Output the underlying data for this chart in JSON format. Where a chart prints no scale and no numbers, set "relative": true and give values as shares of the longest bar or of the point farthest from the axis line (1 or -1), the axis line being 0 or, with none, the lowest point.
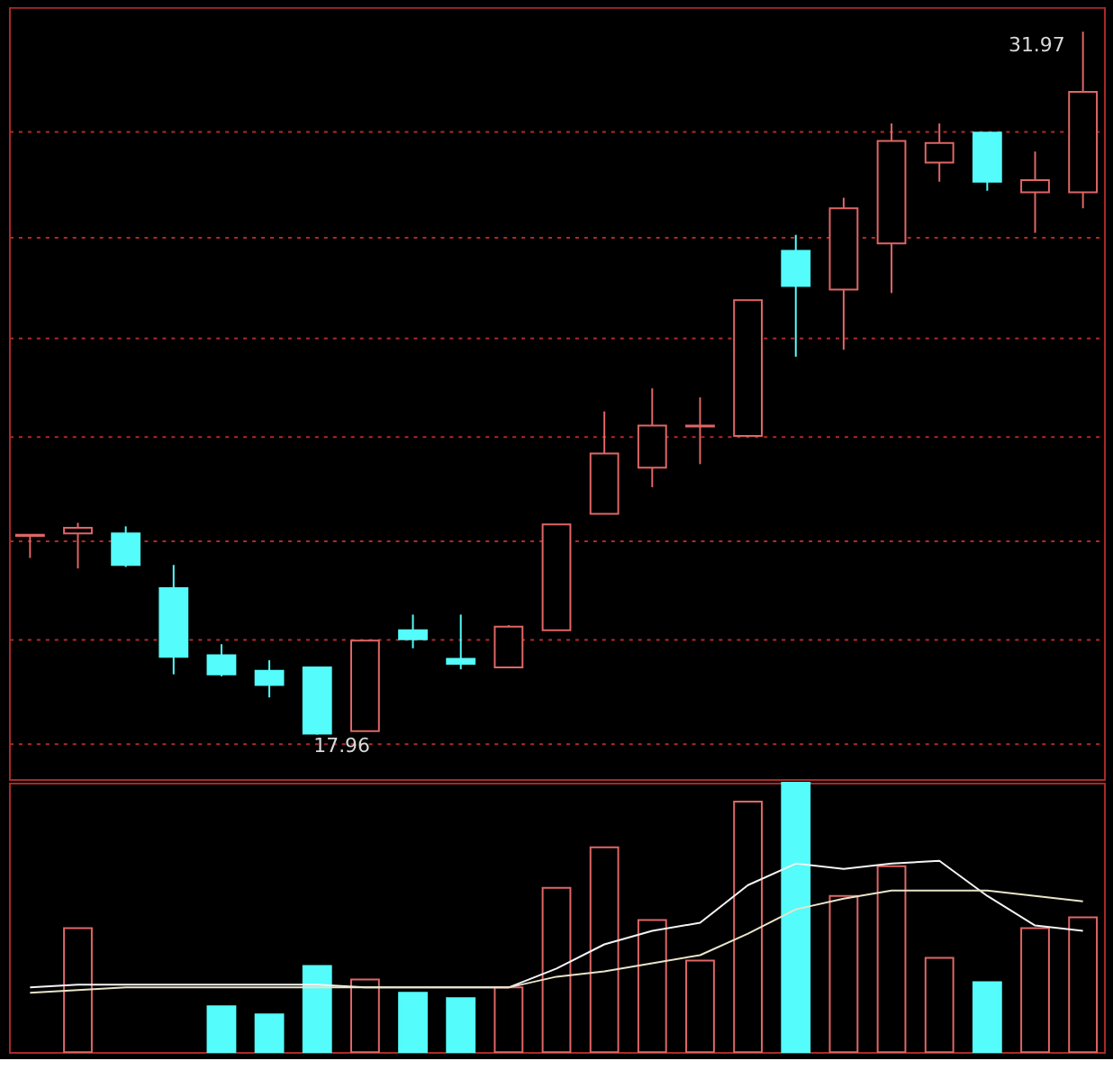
{
  "chart_data": [
    {
      "type": "candlestick",
      "categories": [
        null,
        null,
        null,
        null,
        null,
        null,
        null,
        null,
        null,
        null,
        null,
        null,
        null,
        null,
        null,
        null,
        null,
        null,
        null,
        null,
        null,
        null,
        null
      ],
      "ohlc": [
        [
          21.92,
          21.94,
          21.48,
          21.94
        ],
        [
          21.97,
          22.18,
          21.27,
          22.08
        ],
        [
          21.97,
          22.11,
          21.3,
          21.34
        ],
        [
          20.88,
          21.34,
          19.16,
          19.51
        ],
        [
          19.54,
          19.76,
          19.12,
          19.16
        ],
        [
          19.23,
          19.44,
          18.7,
          18.95
        ],
        [
          19.3,
          19.3,
          17.96,
          17.98
        ],
        [
          18.03,
          19.83,
          18.03,
          19.83
        ],
        [
          20.04,
          20.35,
          19.68,
          19.86
        ],
        [
          19.47,
          20.35,
          19.26,
          19.37
        ],
        [
          19.3,
          20.14,
          19.3,
          20.11
        ],
        [
          20.04,
          22.15,
          20.04,
          22.15
        ],
        [
          22.36,
          24.4,
          22.36,
          23.56
        ],
        [
          23.28,
          24.86,
          22.89,
          24.12
        ],
        [
          24.1,
          24.68,
          23.35,
          24.12
        ],
        [
          23.91,
          26.62,
          23.91,
          26.62
        ],
        [
          27.6,
          27.92,
          25.49,
          26.9
        ],
        [
          26.83,
          28.66,
          25.63,
          28.45
        ],
        [
          27.75,
          30.14,
          26.76,
          29.79
        ],
        [
          29.36,
          30.14,
          28.98,
          29.75
        ],
        [
          29.96,
          29.96,
          28.8,
          28.98
        ],
        [
          28.77,
          29.58,
          27.96,
          29.01
        ],
        [
          28.77,
          31.97,
          28.45,
          30.77
        ]
      ],
      "colors": [
        "#e06666",
        "#e06666",
        "#54fcfc",
        "#54fcfc",
        "#54fcfc",
        "#54fcfc",
        "#54fcfc",
        "#e06666",
        "#54fcfc",
        "#54fcfc",
        "#e06666",
        "#e06666",
        "#e06666",
        "#e06666",
        "#e06666",
        "#e06666",
        "#54fcfc",
        "#e06666",
        "#e06666",
        "#e06666",
        "#54fcfc",
        "#e06666",
        "#e06666"
      ],
      "ylim": [
        17.07,
        32.46
      ],
      "yticks": [
        {
          "value": 17.78,
          "label": null
        },
        {
          "value": 19.86,
          "label": null
        },
        {
          "value": 21.83,
          "label": null
        },
        {
          "value": 23.91,
          "label": null
        },
        {
          "value": 25.88,
          "label": null
        },
        {
          "value": 27.89,
          "label": null
        },
        {
          "value": 30.0,
          "label": null
        }
      ],
      "grid": "y",
      "tick_labels": false,
      "annotations": [
        "31.97",
        "17.96"
      ]
    },
    {
      "type": "bar",
      "relative": true,
      "categories": [
        null,
        null,
        null,
        null,
        null,
        null,
        null,
        null,
        null,
        null,
        null,
        null,
        null,
        null,
        null,
        null,
        null,
        null,
        null,
        null,
        null,
        null,
        null
      ],
      "series": [
        {
          "type": "bar",
          "values": [
            null,
            0.46,
            null,
            null,
            0.17,
            0.14,
            0.32,
            0.27,
            0.22,
            0.2,
            0.24,
            0.61,
            0.76,
            0.49,
            0.34,
            0.93,
            1,
            0.58,
            0.69,
            0.35,
            0.26,
            0.46,
            0.5
          ],
          "colors": [
            "#e06666",
            "#e06666",
            "#54fcfc",
            "#54fcfc",
            "#54fcfc",
            "#54fcfc",
            "#54fcfc",
            "#e06666",
            "#54fcfc",
            "#54fcfc",
            "#e06666",
            "#e06666",
            "#e06666",
            "#e06666",
            "#e06666",
            "#e06666",
            "#54fcfc",
            "#e06666",
            "#e06666",
            "#e06666",
            "#54fcfc",
            "#e06666",
            "#e06666"
          ]
        },
        {
          "type": "line",
          "color": "#f4f4f4",
          "values": [
            0.24,
            0.25,
            0.25,
            0.25,
            0.25,
            0.25,
            0.25,
            0.24,
            0.24,
            0.24,
            0.24,
            0.31,
            0.4,
            0.45,
            0.48,
            0.62,
            0.7,
            0.68,
            0.7,
            0.71,
            0.58,
            0.47,
            0.45
          ]
        },
        {
          "type": "line",
          "color": "#e8e4c8",
          "values": [
            0.22,
            0.23,
            0.24,
            0.24,
            0.24,
            0.24,
            0.24,
            0.24,
            0.24,
            0.24,
            0.24,
            0.28,
            0.3,
            0.33,
            0.36,
            0.44,
            0.53,
            0.57,
            0.6,
            0.6,
            0.6,
            0.58,
            0.56
          ]
        }
      ]
    }
  ]
}
